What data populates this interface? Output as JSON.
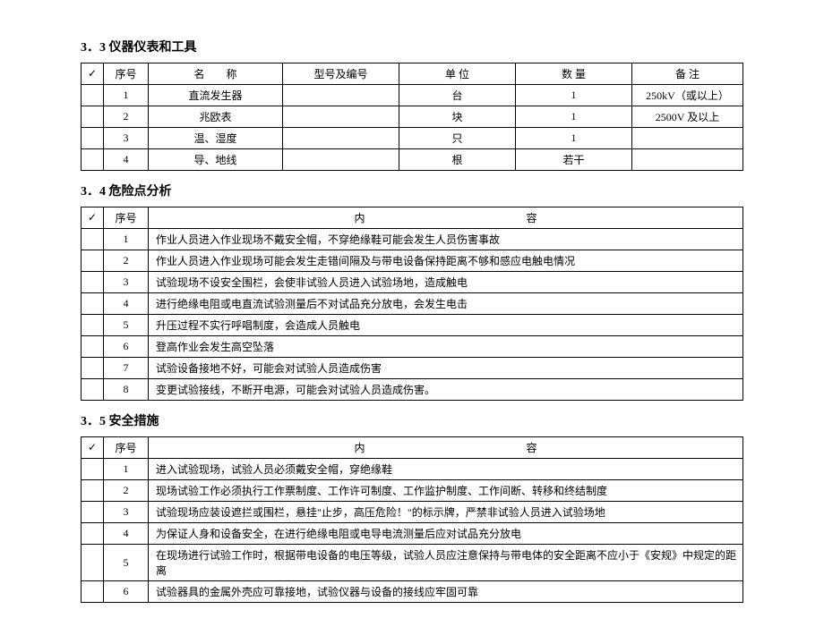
{
  "section1": {
    "title": "3．3 仪器仪表和工具",
    "headers": {
      "check": "✓",
      "num": "序号",
      "name": "名　　称",
      "model": "型号及编号",
      "unit": "单  位",
      "qty": "数  量",
      "remark": "备  注"
    },
    "rows": [
      {
        "num": "1",
        "name": "直流发生器",
        "model": "",
        "unit": "台",
        "qty": "1",
        "remark": "250kV（或以上）"
      },
      {
        "num": "2",
        "name": "兆欧表",
        "model": "",
        "unit": "块",
        "qty": "1",
        "remark": "2500V 及以上"
      },
      {
        "num": "3",
        "name": "温、湿度",
        "model": "",
        "unit": "只",
        "qty": "1",
        "remark": ""
      },
      {
        "num": "4",
        "name": "导、地线",
        "model": "",
        "unit": "根",
        "qty": "若干",
        "remark": ""
      }
    ]
  },
  "section2": {
    "title": "3．4 危险点分析",
    "headers": {
      "check": "✓",
      "num": "序号",
      "content": "内　　　　　　　　　　　　　　　容"
    },
    "rows": [
      {
        "num": "1",
        "content": "作业人员进入作业现场不戴安全帽，不穿绝缘鞋可能会发生人员伤害事故"
      },
      {
        "num": "2",
        "content": "作业人员进入作业现场可能会发生走错间隔及与带电设备保持距离不够和感应电触电情况"
      },
      {
        "num": "3",
        "content": "试验现场不设安全围栏，会使非试验人员进入试验场地，造成触电"
      },
      {
        "num": "4",
        "content": "进行绝缘电阻或电直流试验测量后不对试品充分放电，会发生电击"
      },
      {
        "num": "5",
        "content": "升压过程不实行呼唱制度，会造成人员触电"
      },
      {
        "num": "6",
        "content": "登高作业会发生高空坠落"
      },
      {
        "num": "7",
        "content": "试验设备接地不好，可能会对试验人员造成伤害"
      },
      {
        "num": "8",
        "content": "变更试验接线，不断开电源，可能会对试验人员造成伤害。"
      }
    ]
  },
  "section3": {
    "title": "3．5 安全措施",
    "headers": {
      "check": "✓",
      "num": "序号",
      "content": "内　　　　　　　　　　　　　　　容"
    },
    "rows": [
      {
        "num": "1",
        "content": "进入试验现场，试验人员必须戴安全帽，穿绝缘鞋"
      },
      {
        "num": "2",
        "content": "现场试验工作必须执行工作票制度、工作许可制度、工作监护制度、工作间断、转移和终结制度"
      },
      {
        "num": "3",
        "content": "试验现场应装设遮拦或围栏，悬挂\"止步，高压危险！\"的标示牌，严禁非试验人员进入试验场地"
      },
      {
        "num": "4",
        "content": "为保证人身和设备安全，在进行绝缘电阻或电导电流测量后应对试品充分放电"
      },
      {
        "num": "5",
        "content": "在现场进行试验工作时，根据带电设备的电压等级，试验人员应注意保持与带电体的安全距离不应小于《安规》中规定的距离"
      },
      {
        "num": "6",
        "content": "试验器具的金属外壳应可靠接地，试验仪器与设备的接线应牢固可靠"
      }
    ]
  }
}
